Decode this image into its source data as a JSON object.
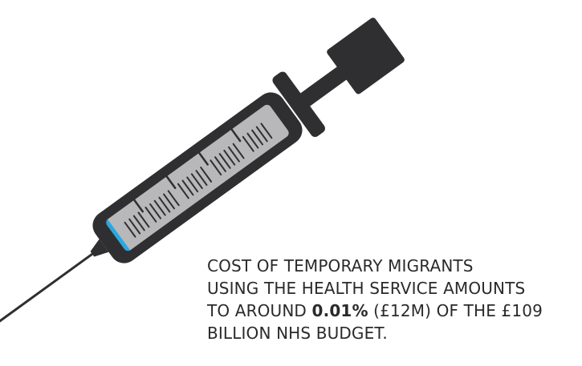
{
  "infographic": {
    "caption": {
      "line1": "COST OF TEMPORARY MIGRANTS",
      "line2": "USING THE HEALTH SERVICE AMOUNTS",
      "line3_before": "TO AROUND",
      "line3_highlight": "0.01%",
      "line3_after": "(£12M) OF THE £109",
      "line4": "BILLION NHS BUDGET."
    },
    "illustration": {
      "icon": "syringe-icon",
      "colors": {
        "barrel_dark": "#2f2f31",
        "fluid": "#b8b8bb",
        "plunger_blue": "#29a8e0"
      }
    }
  }
}
